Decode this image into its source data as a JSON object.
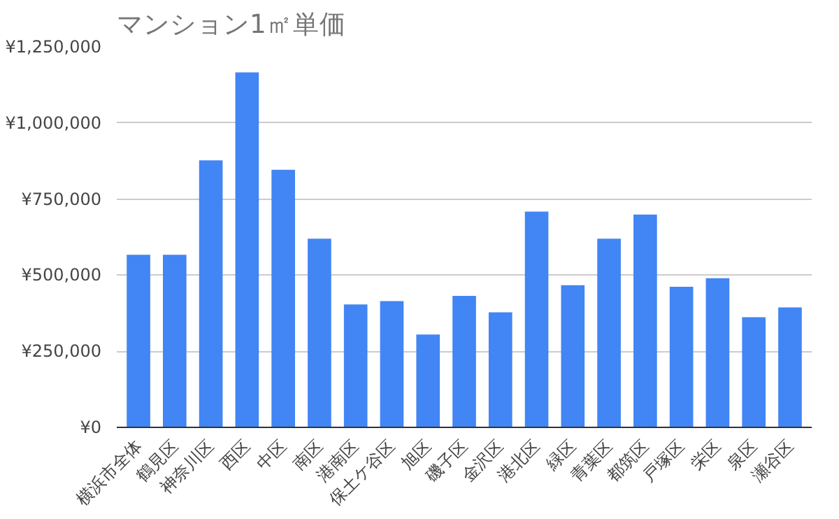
{
  "chart_data": {
    "type": "bar",
    "title": "マンション1㎡単価",
    "categories": [
      "横浜市全体",
      "鶴見区",
      "神奈川区",
      "西区",
      "中区",
      "南区",
      "港南区",
      "保土ケ谷区",
      "旭区",
      "磯子区",
      "金沢区",
      "港北区",
      "緑区",
      "青葉区",
      "都筑区",
      "戸塚区",
      "栄区",
      "泉区",
      "瀬谷区"
    ],
    "values": [
      567000,
      567000,
      877000,
      1166000,
      846000,
      620000,
      404000,
      415000,
      305000,
      432000,
      378000,
      709000,
      467000,
      620000,
      699000,
      462000,
      490000,
      362000,
      394000
    ],
    "color": "#4285f4",
    "ylim": [
      0,
      1250000
    ],
    "yticks": [
      {
        "value": 0,
        "label": "¥0"
      },
      {
        "value": 250000,
        "label": "¥250,000"
      },
      {
        "value": 500000,
        "label": "¥500,000"
      },
      {
        "value": 750000,
        "label": "¥750,000"
      },
      {
        "value": 1000000,
        "label": "¥1,000,000"
      },
      {
        "value": 1250000,
        "label": "¥1,250,000"
      }
    ],
    "grid": "y"
  }
}
